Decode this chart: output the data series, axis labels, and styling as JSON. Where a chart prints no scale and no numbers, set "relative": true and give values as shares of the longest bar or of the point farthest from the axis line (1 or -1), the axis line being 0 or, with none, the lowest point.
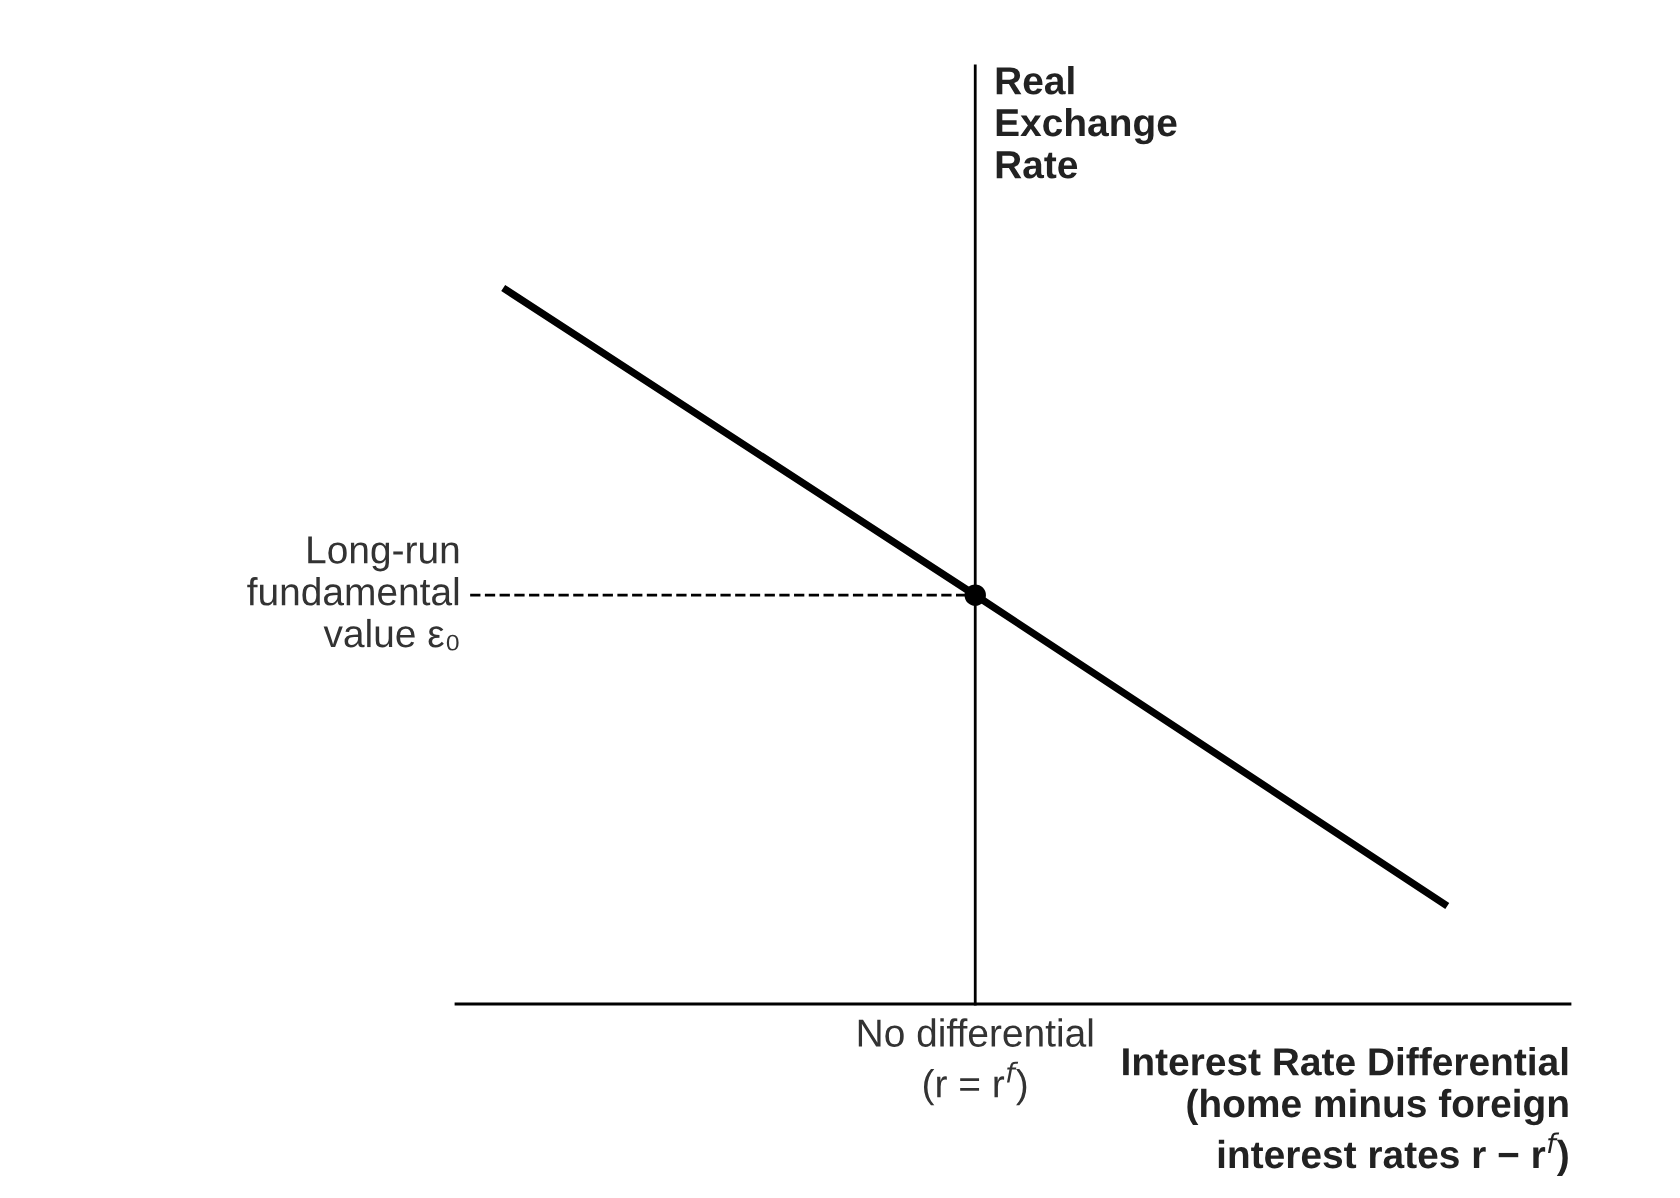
{
  "chart_data": {
    "type": "line",
    "relative": true,
    "categories": [
      null,
      null,
      null
    ],
    "xlabel": "Interest Rate Differential\n(home minus foreign\ninterest rates r − r$^{f}$)",
    "ylabel": "Real\nExchange\nRate",
    "annotations": [
      "No differential\n(r = r$^{f}$)"
    ],
    "series": [
      {
        "color": "#000000",
        "values": [
          1,
          0.571,
          0.137
        ]
      }
    ],
    "ref_lines": [
      {
        "axis": "y",
        "value": 0.571,
        "label": "Long-run\nfundamental\nvalue ε₀",
        "line_style": "dashed",
        "color": "#000000"
      }
    ],
    "line_style": "solid"
  }
}
